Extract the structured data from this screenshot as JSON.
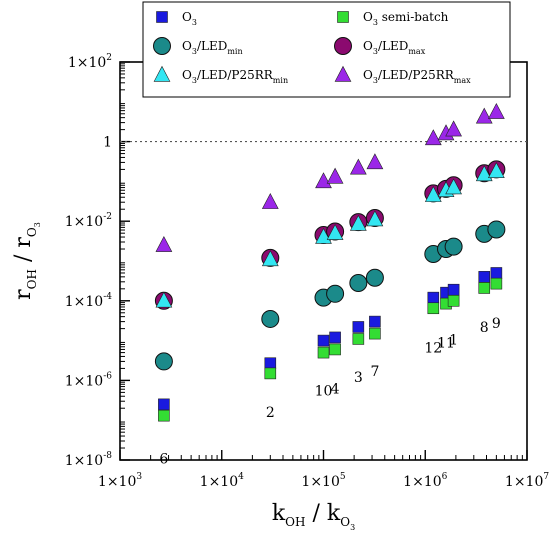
{
  "chart_data": {
    "type": "scatter",
    "x_scale": "log",
    "y_scale": "log",
    "xlim": [
      1000,
      10000000
    ],
    "ylim": [
      1e-08,
      100
    ],
    "grid": false,
    "legend_position": "top",
    "xlabel": {
      "main": "k",
      "sub": "OH",
      "sep": " / k",
      "sub2": "O",
      "subsub": "3"
    },
    "ylabel": {
      "main": "r",
      "sub": "OH",
      "sep": " / r",
      "sub2": "O",
      "subsub": "3"
    },
    "x_ticks": [
      {
        "value": 1000,
        "base": "1×10",
        "exp": "3"
      },
      {
        "value": 10000,
        "base": "1×10",
        "exp": "4"
      },
      {
        "value": 100000,
        "base": "1×10",
        "exp": "5"
      },
      {
        "value": 1000000,
        "base": "1×10",
        "exp": "6"
      },
      {
        "value": 10000000,
        "base": "1×10",
        "exp": "7"
      }
    ],
    "y_ticks": [
      {
        "value": 1e-08,
        "base": "1×10",
        "exp": "-8"
      },
      {
        "value": 1e-06,
        "base": "1×10",
        "exp": "-6"
      },
      {
        "value": 0.0001,
        "base": "1×10",
        "exp": "-4"
      },
      {
        "value": 0.01,
        "base": "1×10",
        "exp": "-2"
      },
      {
        "value": 1,
        "base": "1",
        "exp": ""
      },
      {
        "value": 100,
        "base": "1×10",
        "exp": "2"
      }
    ],
    "reference_line": {
      "y": 1,
      "style": "dotted"
    },
    "x": [
      2700,
      30000,
      100000,
      130000,
      220000,
      320000,
      1200000,
      1600000,
      1900000,
      3800000,
      5000000
    ],
    "series": [
      {
        "name": "O3",
        "label_main": "O",
        "label_sub": "3",
        "label_rest": "",
        "label_rest_sub": "",
        "marker": "square",
        "color": "#1a1adf",
        "values": [
          2.5e-07,
          2.7e-06,
          1e-05,
          1.2e-05,
          2.2e-05,
          3e-05,
          0.00012,
          0.00016,
          0.00019,
          0.0004,
          0.0005
        ]
      },
      {
        "name": "O3/LEDmin",
        "label_main": "O",
        "label_sub": "3",
        "label_rest": "/LED",
        "label_rest_sub": "min",
        "marker": "circle",
        "color": "#1b8a8a",
        "values": [
          3e-06,
          3.5e-05,
          0.00012,
          0.00015,
          0.00028,
          0.00038,
          0.0015,
          0.002,
          0.0023,
          0.0048,
          0.0062
        ]
      },
      {
        "name": "O3/LED/P25RRmin",
        "label_main": "O",
        "label_sub": "3",
        "label_rest": "/LED/P25RR",
        "label_rest_sub": "min",
        "marker": "triangle",
        "color": "#33e6f2",
        "values": [
          0.0001,
          0.0011,
          0.004,
          0.005,
          0.0085,
          0.011,
          0.045,
          0.06,
          0.07,
          0.15,
          0.18
        ]
      },
      {
        "name": "O3 semi-batch",
        "label_main": "O",
        "label_sub": "3",
        "label_rest": " semi-batch",
        "label_rest_sub": "",
        "marker": "square",
        "color": "#33dd33",
        "values": [
          1.3e-07,
          1.5e-06,
          5e-06,
          6e-06,
          1.1e-05,
          1.5e-05,
          6.5e-05,
          8.5e-05,
          0.0001,
          0.00021,
          0.00027
        ]
      },
      {
        "name": "O3/LEDmax",
        "label_main": "O",
        "label_sub": "3",
        "label_rest": "/LED",
        "label_rest_sub": "max",
        "marker": "circle",
        "color": "#8b0a6f",
        "values": [
          0.0001,
          0.0012,
          0.0045,
          0.0055,
          0.0095,
          0.012,
          0.05,
          0.065,
          0.08,
          0.16,
          0.2
        ]
      },
      {
        "name": "O3/LED/P25RRmax",
        "label_main": "O",
        "label_sub": "3",
        "label_rest": "/LED/P25RR",
        "label_rest_sub": "max",
        "marker": "triangle",
        "color": "#9b27e8",
        "values": [
          0.0025,
          0.03,
          0.1,
          0.13,
          0.22,
          0.3,
          1.2,
          1.6,
          2.0,
          4.2,
          5.5
        ]
      }
    ],
    "point_labels": [
      {
        "text": "6",
        "x": 2700,
        "y": 1.1e-08
      },
      {
        "text": "2",
        "x": 30000,
        "y": 1.6e-07
      },
      {
        "text": "10",
        "x": 100000,
        "y": 5.5e-07
      },
      {
        "text": "4",
        "x": 130000,
        "y": 6.2e-07
      },
      {
        "text": "3",
        "x": 220000,
        "y": 1.2e-06
      },
      {
        "text": "7",
        "x": 320000,
        "y": 1.7e-06
      },
      {
        "text": "12",
        "x": 1200000,
        "y": 6.8e-06
      },
      {
        "text": "11",
        "x": 1600000,
        "y": 8.9e-06
      },
      {
        "text": "1",
        "x": 1900000,
        "y": 1.06e-05
      },
      {
        "text": "8",
        "x": 3800000,
        "y": 2.2e-05
      },
      {
        "text": "9",
        "x": 5000000,
        "y": 2.8e-05
      }
    ]
  }
}
